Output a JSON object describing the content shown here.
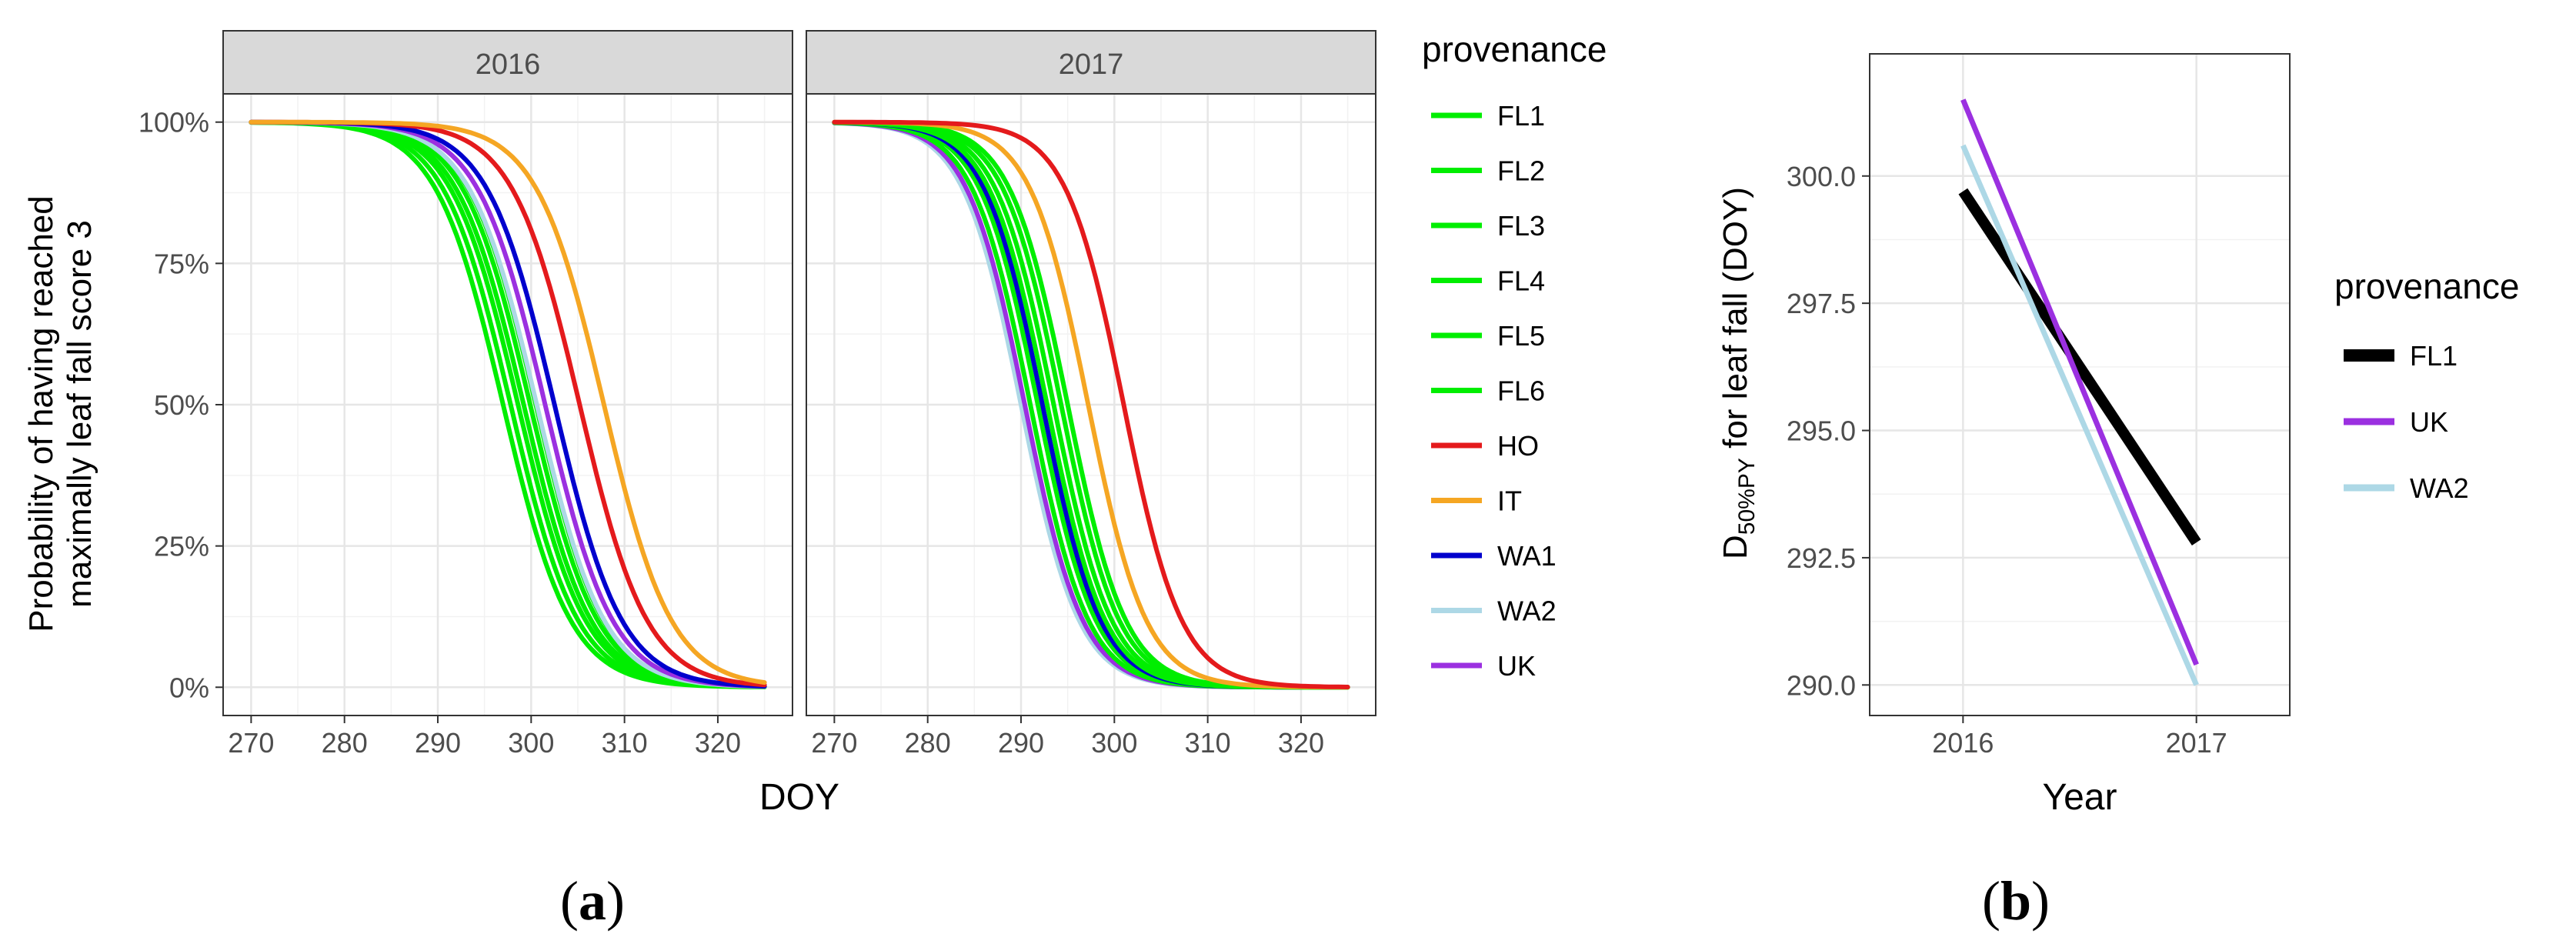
{
  "chart_data": [
    {
      "type": "line",
      "panel_label": "a",
      "ylabel_line1": "Probability of having reached",
      "ylabel_line2": "maximally leaf fall score 3",
      "xlabel": "DOY",
      "xlim": [
        267,
        328
      ],
      "ylim": [
        -0.05,
        1.05
      ],
      "x_ticks": [
        270,
        280,
        290,
        300,
        310,
        320
      ],
      "y_ticks": [
        {
          "value": 0,
          "label": "0%"
        },
        {
          "value": 0.25,
          "label": "25%"
        },
        {
          "value": 0.5,
          "label": "50%"
        },
        {
          "value": 0.75,
          "label": "75%"
        },
        {
          "value": 1,
          "label": "100%"
        }
      ],
      "x_range": [
        270,
        325
      ],
      "legend_title": "provenance",
      "legend": [
        {
          "name": "FL1",
          "color": "#00ee00"
        },
        {
          "name": "FL2",
          "color": "#00ee00"
        },
        {
          "name": "FL3",
          "color": "#00ee00"
        },
        {
          "name": "FL4",
          "color": "#00ee00"
        },
        {
          "name": "FL5",
          "color": "#00ee00"
        },
        {
          "name": "FL6",
          "color": "#00ee00"
        },
        {
          "name": "HO",
          "color": "#e41a1c"
        },
        {
          "name": "IT",
          "color": "#f5a623"
        },
        {
          "name": "WA1",
          "color": "#0000cd"
        },
        {
          "name": "WA2",
          "color": "#add8e6"
        },
        {
          "name": "UK",
          "color": "#9b30e0"
        }
      ],
      "facets": [
        {
          "label": "2016",
          "series": [
            {
              "name": "FL1",
              "color": "#00ee00",
              "midpoint": 297.0,
              "scale": 3.6
            },
            {
              "name": "FL2",
              "color": "#00ee00",
              "midpoint": 297.8,
              "scale": 3.6
            },
            {
              "name": "FL3",
              "color": "#00ee00",
              "midpoint": 298.6,
              "scale": 3.6
            },
            {
              "name": "FL4",
              "color": "#00ee00",
              "midpoint": 299.2,
              "scale": 3.6
            },
            {
              "name": "FL5",
              "color": "#00ee00",
              "midpoint": 299.9,
              "scale": 3.6
            },
            {
              "name": "FL6",
              "color": "#00ee00",
              "midpoint": 300.5,
              "scale": 3.6
            },
            {
              "name": "WA2",
              "color": "#add8e6",
              "midpoint": 300.6,
              "scale": 3.6
            },
            {
              "name": "UK",
              "color": "#9b30e0",
              "midpoint": 301.5,
              "scale": 3.6
            },
            {
              "name": "WA1",
              "color": "#0000cd",
              "midpoint": 302.5,
              "scale": 3.6
            },
            {
              "name": "HO",
              "color": "#e41a1c",
              "midpoint": 305.2,
              "scale": 3.6
            },
            {
              "name": "IT",
              "color": "#f5a623",
              "midpoint": 307.8,
              "scale": 3.6
            }
          ]
        },
        {
          "label": "2017",
          "series": [
            {
              "name": "WA2",
              "color": "#add8e6",
              "midpoint": 290.0,
              "scale": 3.1
            },
            {
              "name": "UK",
              "color": "#9b30e0",
              "midpoint": 290.4,
              "scale": 3.1
            },
            {
              "name": "FL1",
              "color": "#00ee00",
              "midpoint": 291.0,
              "scale": 3.1
            },
            {
              "name": "FL2",
              "color": "#00ee00",
              "midpoint": 291.8,
              "scale": 3.1
            },
            {
              "name": "WA1",
              "color": "#0000cd",
              "midpoint": 292.3,
              "scale": 3.1
            },
            {
              "name": "FL3",
              "color": "#00ee00",
              "midpoint": 292.8,
              "scale": 3.1
            },
            {
              "name": "FL4",
              "color": "#00ee00",
              "midpoint": 293.5,
              "scale": 3.1
            },
            {
              "name": "FL5",
              "color": "#00ee00",
              "midpoint": 294.3,
              "scale": 3.1
            },
            {
              "name": "FL6",
              "color": "#00ee00",
              "midpoint": 295.0,
              "scale": 3.1
            },
            {
              "name": "IT",
              "color": "#f5a623",
              "midpoint": 297.2,
              "scale": 3.1
            },
            {
              "name": "HO",
              "color": "#e41a1c",
              "midpoint": 301.0,
              "scale": 3.1
            }
          ]
        }
      ]
    },
    {
      "type": "line",
      "panel_label": "b",
      "ylabel_main": "D",
      "ylabel_sub": "50%PY",
      "ylabel_rest": " for leaf fall (DOY)",
      "xlabel": "Year",
      "categories": [
        "2016",
        "2017"
      ],
      "xlim": [
        0.6,
        2.4
      ],
      "ylim": [
        289.4,
        302.4
      ],
      "y_ticks": [
        290.0,
        292.5,
        295.0,
        297.5,
        300.0
      ],
      "y_tick_labels": [
        "290.0",
        "292.5",
        "295.0",
        "297.5",
        "300.0"
      ],
      "legend_title": "provenance",
      "series": [
        {
          "name": "FL1",
          "color": "#000000",
          "values": [
            299.7,
            292.8
          ]
        },
        {
          "name": "UK",
          "color": "#9b30e0",
          "values": [
            301.5,
            290.4
          ]
        },
        {
          "name": "WA2",
          "color": "#add8e6",
          "values": [
            300.6,
            290.0
          ]
        }
      ]
    }
  ]
}
